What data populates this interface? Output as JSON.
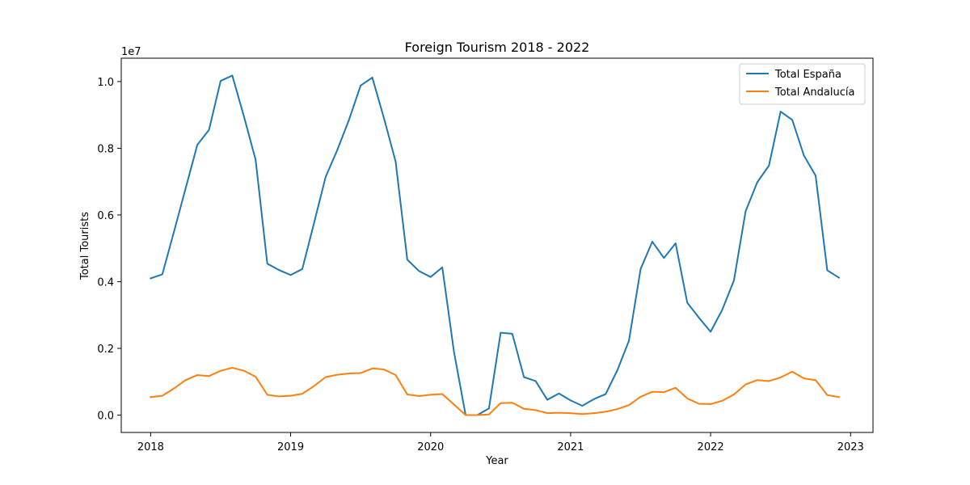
{
  "chart_data": {
    "type": "line",
    "title": "Foreign Tourism 2018 - 2022",
    "xlabel": "Year",
    "ylabel": "Total Tourists",
    "y_offset_label": "1e7",
    "xlim": [
      2017.79,
      2023.16
    ],
    "ylim": [
      -520000,
      10700000
    ],
    "x_ticks": [
      2018,
      2019,
      2020,
      2021,
      2022,
      2023
    ],
    "x_tick_labels": [
      "2018",
      "2019",
      "2020",
      "2021",
      "2022",
      "2023"
    ],
    "y_ticks": [
      0,
      2000000,
      4000000,
      6000000,
      8000000,
      10000000
    ],
    "y_tick_labels": [
      "0.0",
      "0.2",
      "0.4",
      "0.6",
      "0.8",
      "1.0"
    ],
    "grid": false,
    "legend_position": "top-right",
    "x_start_year": 2018,
    "x_step_months": 1,
    "series": [
      {
        "name": "Total España",
        "color": "#1f77b4",
        "values": [
          4100000,
          4220000,
          5500000,
          6800000,
          8100000,
          8550000,
          10020000,
          10180000,
          8950000,
          7650000,
          4540000,
          4350000,
          4200000,
          4380000,
          5750000,
          7140000,
          7950000,
          8850000,
          9880000,
          10120000,
          8900000,
          7600000,
          4660000,
          4320000,
          4140000,
          4430000,
          1900000,
          0,
          0,
          200000,
          2470000,
          2440000,
          1140000,
          1020000,
          460000,
          650000,
          440000,
          280000,
          480000,
          630000,
          1340000,
          2230000,
          4380000,
          5200000,
          4710000,
          5150000,
          3370000,
          2920000,
          2500000,
          3160000,
          4040000,
          6110000,
          6980000,
          7480000,
          9100000,
          8850000,
          7780000,
          7180000,
          4340000,
          4120000
        ]
      },
      {
        "name": "Total Andalucía",
        "color": "#ff7f0e",
        "values": [
          540000,
          580000,
          800000,
          1050000,
          1200000,
          1170000,
          1330000,
          1420000,
          1330000,
          1150000,
          610000,
          560000,
          580000,
          640000,
          870000,
          1140000,
          1210000,
          1250000,
          1260000,
          1400000,
          1370000,
          1200000,
          620000,
          570000,
          610000,
          630000,
          320000,
          0,
          0,
          20000,
          360000,
          370000,
          190000,
          150000,
          60000,
          70000,
          60000,
          30000,
          60000,
          100000,
          180000,
          300000,
          550000,
          700000,
          690000,
          820000,
          500000,
          340000,
          330000,
          430000,
          620000,
          920000,
          1050000,
          1020000,
          1130000,
          1300000,
          1100000,
          1050000,
          600000,
          540000
        ]
      }
    ]
  }
}
